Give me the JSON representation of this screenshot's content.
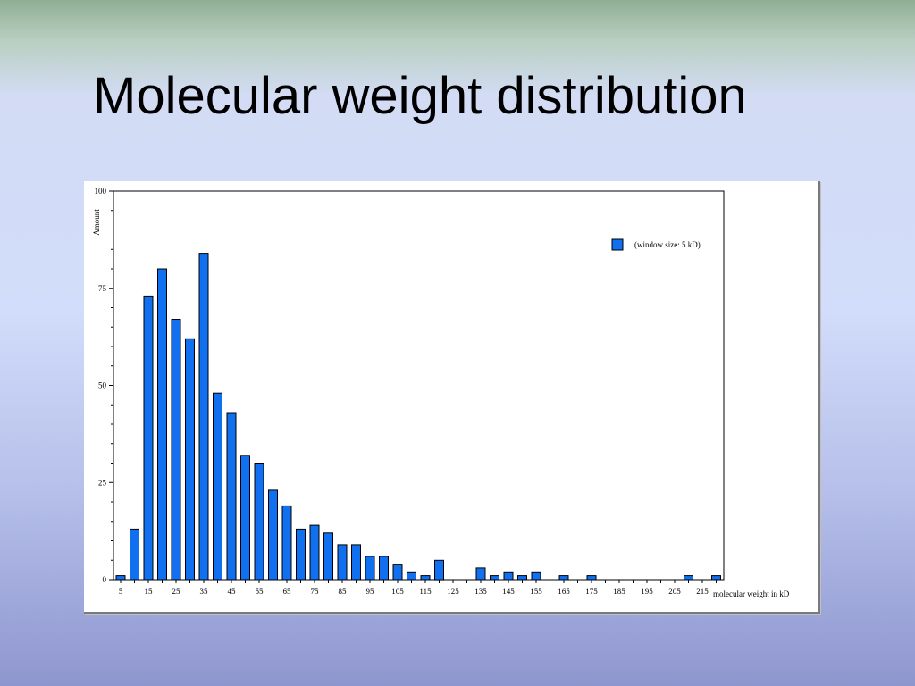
{
  "slide": {
    "title": "Molecular weight distribution"
  },
  "chart_data": {
    "type": "bar",
    "title": "",
    "xlabel": "molecular weight in kD",
    "ylabel": "Amount",
    "ylim": [
      0,
      100
    ],
    "y_ticks": [
      0,
      25,
      50,
      75,
      100
    ],
    "x_tick_labels": [
      "5",
      "15",
      "25",
      "35",
      "45",
      "55",
      "65",
      "75",
      "85",
      "95",
      "105",
      "115",
      "125",
      "135",
      "145",
      "155",
      "165",
      "175",
      "185",
      "195",
      "205",
      "215"
    ],
    "categories": [
      5,
      10,
      15,
      20,
      25,
      30,
      35,
      40,
      45,
      50,
      55,
      60,
      65,
      70,
      75,
      80,
      85,
      90,
      95,
      100,
      105,
      110,
      115,
      120,
      125,
      130,
      135,
      140,
      145,
      150,
      155,
      160,
      165,
      170,
      175,
      180,
      185,
      190,
      195,
      200,
      205,
      210,
      215,
      220
    ],
    "series": [
      {
        "name": "(window size: 5 kD)",
        "color": "#1170f0",
        "values": [
          1,
          13,
          73,
          80,
          67,
          62,
          84,
          48,
          43,
          32,
          30,
          23,
          19,
          13,
          14,
          12,
          9,
          9,
          6,
          6,
          4,
          2,
          1,
          5,
          0,
          0,
          3,
          1,
          2,
          1,
          2,
          0,
          1,
          0,
          1,
          0,
          0,
          0,
          0,
          0,
          0,
          1,
          0,
          1
        ]
      }
    ],
    "grid": false,
    "legend_position": "top-right"
  }
}
